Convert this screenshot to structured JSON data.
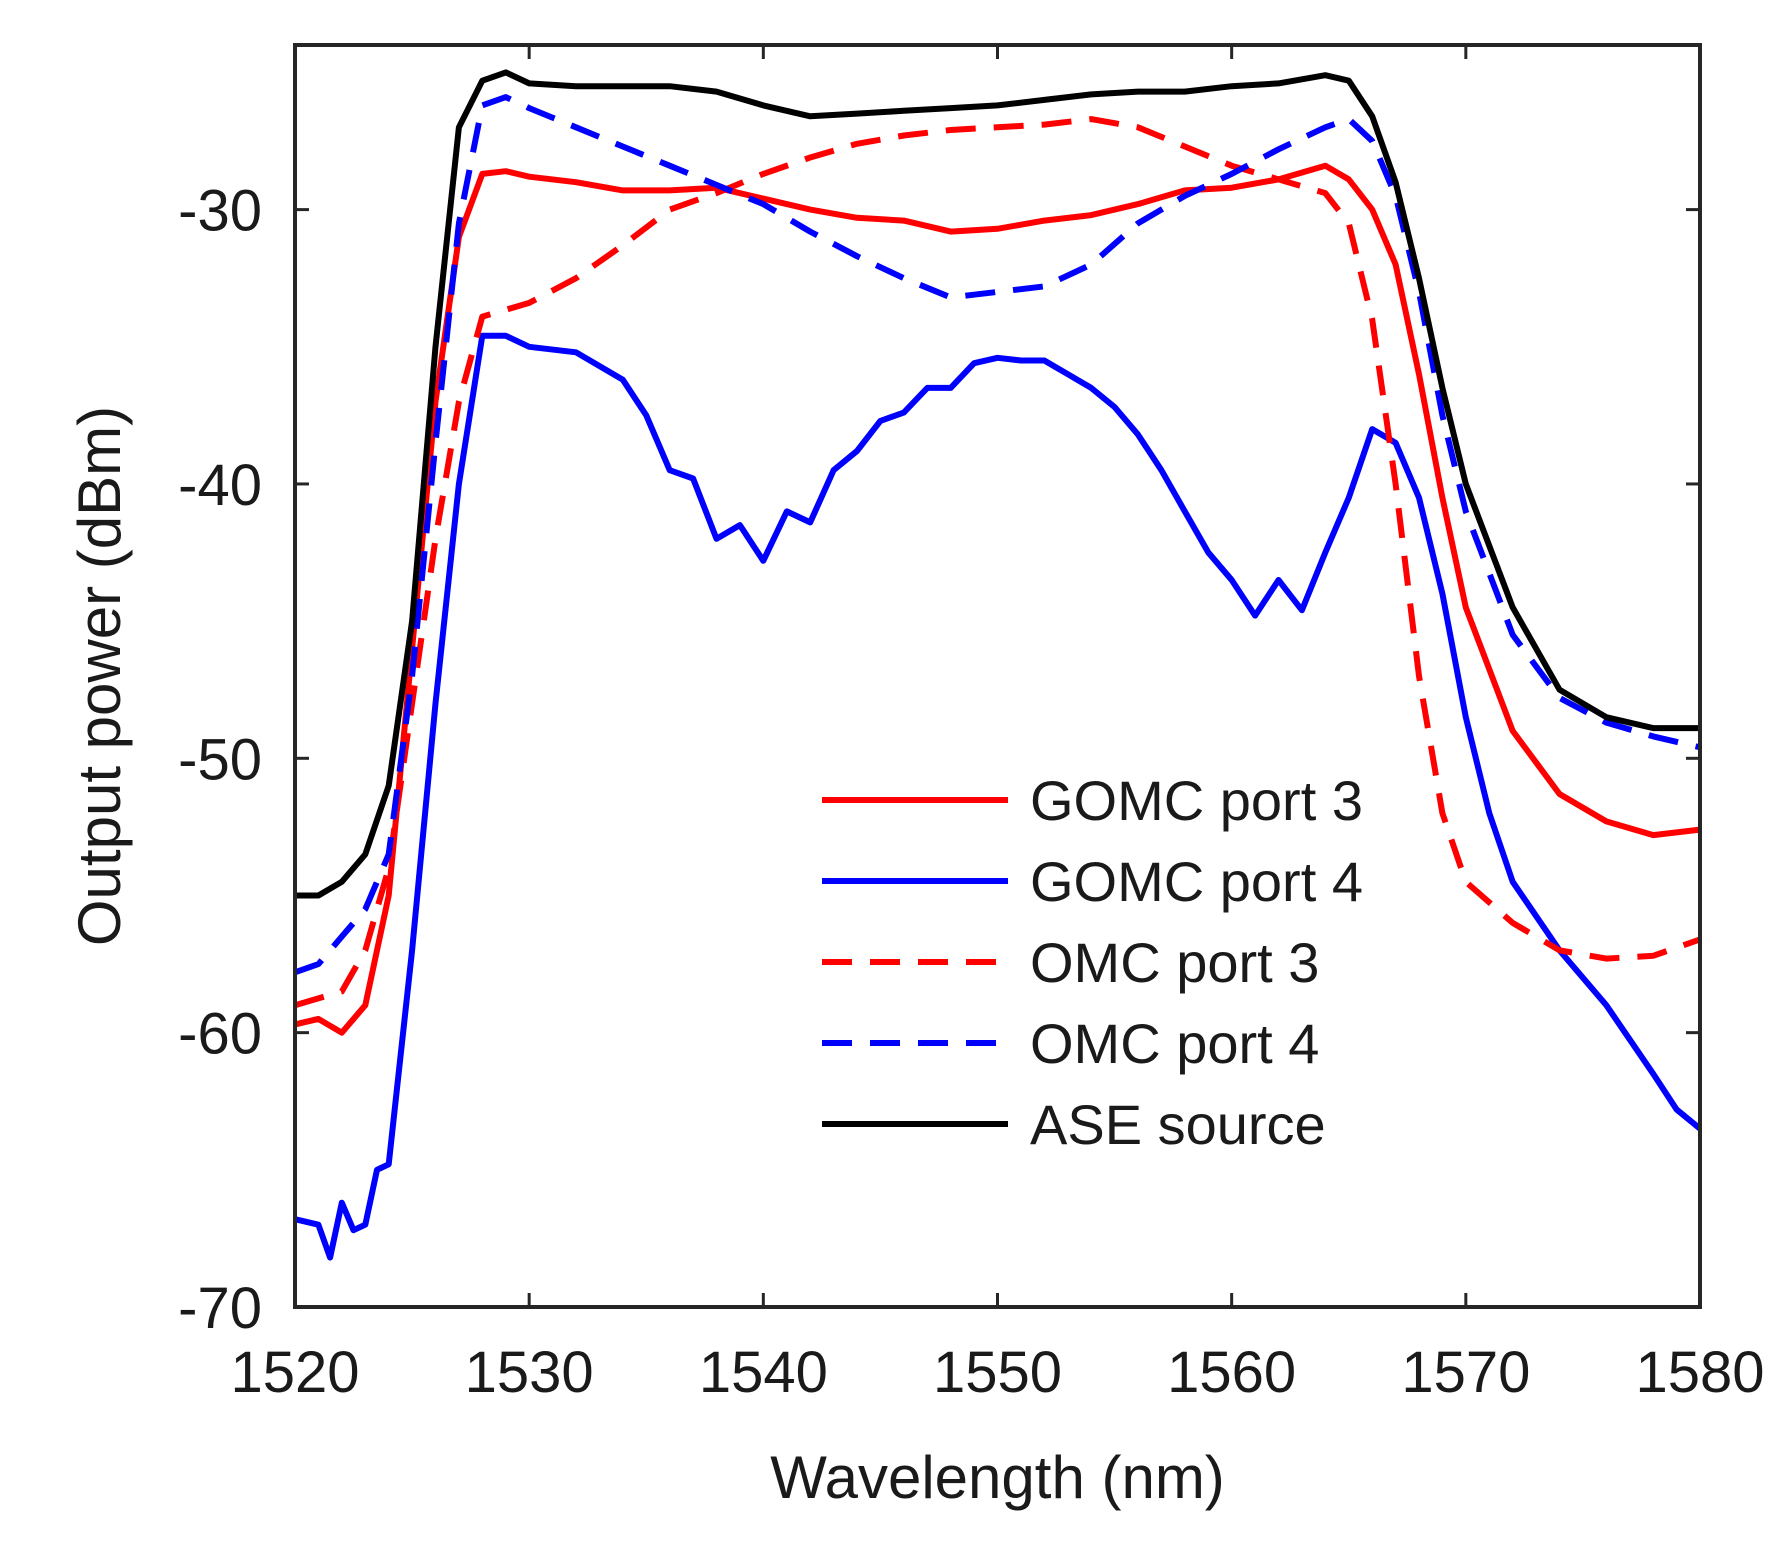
{
  "chart_data": {
    "type": "line",
    "title": "",
    "xlabel": "Wavelength (nm)",
    "ylabel": "Output power (dBm)",
    "xlim": [
      1520,
      1580
    ],
    "ylim": [
      -70,
      -24
    ],
    "xticks": [
      1520,
      1530,
      1540,
      1550,
      1560,
      1570,
      1580
    ],
    "yticks": [
      -30,
      -40,
      -50,
      -60,
      -70
    ],
    "legend_position": "bottom-center",
    "series": [
      {
        "name": "GOMC port 3",
        "color": "#ff0000",
        "dash": "solid",
        "x": [
          1520,
          1521,
          1522,
          1523,
          1524,
          1525,
          1526,
          1527,
          1528,
          1529,
          1530,
          1532,
          1534,
          1536,
          1538,
          1540,
          1542,
          1544,
          1546,
          1548,
          1550,
          1552,
          1554,
          1556,
          1558,
          1560,
          1562,
          1564,
          1565,
          1566,
          1567,
          1568,
          1569,
          1570,
          1572,
          1574,
          1576,
          1578,
          1580
        ],
        "y": [
          -59.7,
          -59.5,
          -60.0,
          -59.0,
          -55.0,
          -46.0,
          -37.0,
          -31.0,
          -28.7,
          -28.6,
          -28.8,
          -29.0,
          -29.3,
          -29.3,
          -29.2,
          -29.6,
          -30.0,
          -30.3,
          -30.4,
          -30.8,
          -30.7,
          -30.4,
          -30.2,
          -29.8,
          -29.3,
          -29.2,
          -28.9,
          -28.4,
          -28.9,
          -30.0,
          -32.0,
          -36.0,
          -40.5,
          -44.5,
          -49.0,
          -51.3,
          -52.3,
          -52.8,
          -52.6
        ]
      },
      {
        "name": "GOMC port 4",
        "color": "#0000ff",
        "dash": "solid",
        "x": [
          1520,
          1521,
          1521.5,
          1522,
          1522.5,
          1523,
          1523.5,
          1524,
          1525,
          1526,
          1527,
          1528,
          1529,
          1530,
          1532,
          1534,
          1535,
          1536,
          1537,
          1538,
          1539,
          1540,
          1541,
          1542,
          1543,
          1544,
          1545,
          1546,
          1547,
          1548,
          1549,
          1550,
          1551,
          1552,
          1553,
          1554,
          1555,
          1556,
          1557,
          1558,
          1559,
          1560,
          1561,
          1562,
          1563,
          1564,
          1565,
          1566,
          1567,
          1568,
          1569,
          1570,
          1571,
          1572,
          1574,
          1576,
          1578,
          1579,
          1580
        ],
        "y": [
          -66.8,
          -67.0,
          -68.2,
          -66.2,
          -67.2,
          -67.0,
          -65.0,
          -64.8,
          -57.0,
          -48.0,
          -40.0,
          -34.6,
          -34.6,
          -35.0,
          -35.2,
          -36.2,
          -37.5,
          -39.5,
          -39.8,
          -42.0,
          -41.5,
          -42.8,
          -41.0,
          -41.4,
          -39.5,
          -38.8,
          -37.7,
          -37.4,
          -36.5,
          -36.5,
          -35.6,
          -35.4,
          -35.5,
          -35.5,
          -36.0,
          -36.5,
          -37.2,
          -38.2,
          -39.5,
          -41.0,
          -42.5,
          -43.5,
          -44.8,
          -43.5,
          -44.6,
          -42.5,
          -40.5,
          -38.0,
          -38.5,
          -40.5,
          -44.0,
          -48.5,
          -52.0,
          -54.5,
          -57.0,
          -59.0,
          -61.5,
          -62.8,
          -63.5
        ]
      },
      {
        "name": "OMC port 3",
        "color": "#ff0000",
        "dash": "dashed",
        "x": [
          1520,
          1522,
          1523,
          1524,
          1525,
          1526,
          1527,
          1528,
          1530,
          1532,
          1534,
          1536,
          1538,
          1540,
          1542,
          1544,
          1546,
          1548,
          1550,
          1552,
          1554,
          1556,
          1558,
          1560,
          1562,
          1564,
          1565,
          1566,
          1567,
          1568,
          1569,
          1570,
          1572,
          1574,
          1576,
          1578,
          1580
        ],
        "y": [
          -59.0,
          -58.5,
          -57.0,
          -54.0,
          -48.0,
          -42.0,
          -37.0,
          -33.9,
          -33.4,
          -32.5,
          -31.3,
          -30.0,
          -29.4,
          -28.7,
          -28.1,
          -27.6,
          -27.3,
          -27.1,
          -27.0,
          -26.9,
          -26.7,
          -27.0,
          -27.7,
          -28.4,
          -28.9,
          -29.4,
          -30.5,
          -34.0,
          -40.0,
          -47.0,
          -52.0,
          -54.5,
          -56.0,
          -57.0,
          -57.3,
          -57.2,
          -56.6
        ]
      },
      {
        "name": "OMC port 4",
        "color": "#0000ff",
        "dash": "dashed",
        "x": [
          1520,
          1521,
          1522,
          1523,
          1524,
          1525,
          1526,
          1527,
          1528,
          1529,
          1530,
          1532,
          1534,
          1536,
          1538,
          1540,
          1542,
          1544,
          1546,
          1548,
          1550,
          1552,
          1554,
          1556,
          1558,
          1560,
          1562,
          1564,
          1565,
          1566,
          1567,
          1568,
          1569,
          1570,
          1572,
          1574,
          1576,
          1578,
          1580
        ],
        "y": [
          -57.8,
          -57.5,
          -56.5,
          -55.5,
          -53.5,
          -47.0,
          -38.5,
          -30.5,
          -26.2,
          -25.9,
          -26.3,
          -27.0,
          -27.7,
          -28.4,
          -29.1,
          -29.8,
          -30.8,
          -31.7,
          -32.5,
          -33.2,
          -33.0,
          -32.8,
          -32.0,
          -30.5,
          -29.5,
          -28.7,
          -27.8,
          -27.0,
          -26.7,
          -27.5,
          -29.5,
          -33.0,
          -37.5,
          -41.0,
          -45.5,
          -47.8,
          -48.7,
          -49.2,
          -49.6
        ]
      },
      {
        "name": "ASE source",
        "color": "#000000",
        "dash": "solid",
        "x": [
          1520,
          1521,
          1522,
          1523,
          1524,
          1525,
          1526,
          1527,
          1528,
          1529,
          1530,
          1532,
          1534,
          1536,
          1538,
          1540,
          1542,
          1544,
          1546,
          1548,
          1550,
          1552,
          1554,
          1556,
          1558,
          1560,
          1562,
          1564,
          1565,
          1566,
          1567,
          1568,
          1569,
          1570,
          1572,
          1574,
          1576,
          1578,
          1580
        ],
        "y": [
          -55.0,
          -55.0,
          -54.5,
          -53.5,
          -51.0,
          -45.0,
          -35.0,
          -27.0,
          -25.3,
          -25.0,
          -25.4,
          -25.5,
          -25.5,
          -25.5,
          -25.7,
          -26.2,
          -26.6,
          -26.5,
          -26.4,
          -26.3,
          -26.2,
          -26.0,
          -25.8,
          -25.7,
          -25.7,
          -25.5,
          -25.4,
          -25.1,
          -25.3,
          -26.6,
          -29.0,
          -32.5,
          -36.5,
          -40.0,
          -44.5,
          -47.5,
          -48.5,
          -48.9,
          -48.9
        ]
      }
    ]
  }
}
